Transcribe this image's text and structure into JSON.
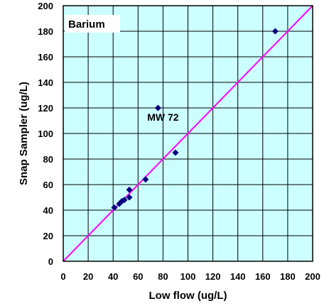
{
  "chart_data": {
    "type": "scatter",
    "title": "Barium",
    "xlabel": "Low flow (ug/L)",
    "ylabel": "Snap Sampler (ug/L)",
    "xlim": [
      0,
      200
    ],
    "ylim": [
      0,
      200
    ],
    "x_ticks": [
      0,
      20,
      40,
      60,
      80,
      100,
      120,
      140,
      160,
      180,
      200
    ],
    "y_ticks": [
      0,
      20,
      40,
      60,
      80,
      100,
      120,
      140,
      160,
      180,
      200
    ],
    "grid": true,
    "plot_background": "#ccffff",
    "grid_color": "#000000",
    "series": [
      {
        "marker": "diamond",
        "color": "#000080",
        "points": [
          {
            "x": 41,
            "y": 42
          },
          {
            "x": 45,
            "y": 45
          },
          {
            "x": 47,
            "y": 47
          },
          {
            "x": 49,
            "y": 48
          },
          {
            "x": 53,
            "y": 50
          },
          {
            "x": 53,
            "y": 56
          },
          {
            "x": 66,
            "y": 64
          },
          {
            "x": 76,
            "y": 120
          },
          {
            "x": 90,
            "y": 85
          },
          {
            "x": 170,
            "y": 180
          }
        ]
      }
    ],
    "reference_line": {
      "from": [
        0,
        0
      ],
      "to": [
        200,
        200
      ],
      "color": "#ff00ff"
    },
    "annotations": [
      {
        "text": "MW 72",
        "x": 80,
        "y": 110
      }
    ]
  }
}
